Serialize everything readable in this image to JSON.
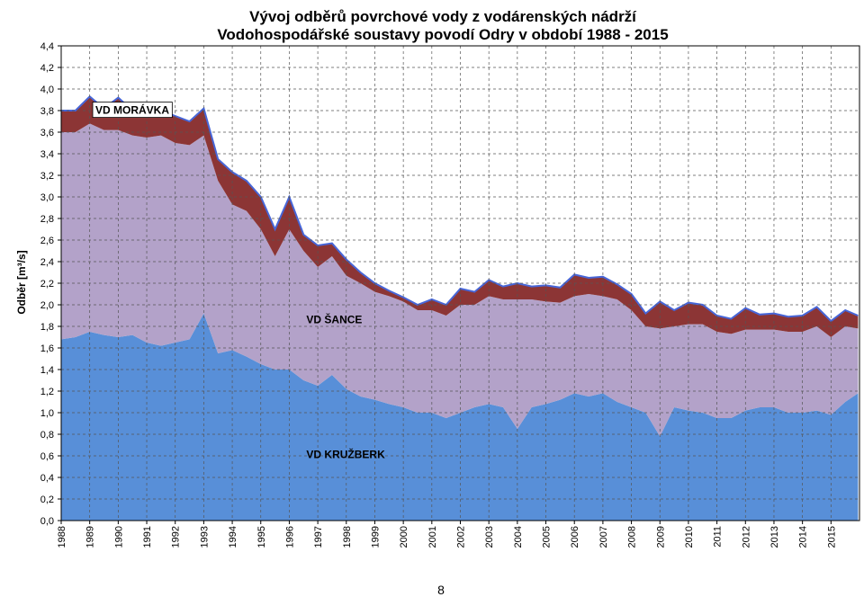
{
  "page_number": "8",
  "chart_data": {
    "type": "area",
    "stacked": true,
    "title": [
      "Vývoj odběrů povrchové vody z vodárenských nádrží",
      "Vodohospodářské soustavy povodí Odry v období  1988 - 2015"
    ],
    "ylabel": "Odběr [m³/s]",
    "xlabel": "",
    "ylim": [
      0,
      4.4
    ],
    "xlim": [
      1988,
      2016
    ],
    "yticks": [
      "0,0",
      "0,2",
      "0,4",
      "0,6",
      "0,8",
      "1,0",
      "1,2",
      "1,4",
      "1,6",
      "1,8",
      "2,0",
      "2,2",
      "2,4",
      "2,6",
      "2,8",
      "3,0",
      "3,2",
      "3,4",
      "3,6",
      "3,8",
      "4,0",
      "4,2",
      "4,4"
    ],
    "xticks": [
      "1988",
      "1989",
      "1990",
      "1991",
      "1992",
      "1993",
      "1994",
      "1995",
      "1996",
      "1997",
      "1998",
      "1999",
      "2000",
      "2001",
      "2002",
      "2003",
      "2004",
      "2005",
      "2006",
      "2007",
      "2008",
      "2009",
      "2010",
      "2011",
      "2012",
      "2013",
      "2014",
      "2015"
    ],
    "grid": true,
    "colors": {
      "kruzberk": "#588fd8",
      "sance": "#b3a2c9",
      "moravka": "#8c3535",
      "edge": "#4766d8"
    },
    "x": [
      1988,
      1988.5,
      1989,
      1989.5,
      1990,
      1990.5,
      1991,
      1991.5,
      1992,
      1992.5,
      1993,
      1993.5,
      1994,
      1994.5,
      1995,
      1995.5,
      1996,
      1996.5,
      1997,
      1997.5,
      1998,
      1998.5,
      1999,
      1999.5,
      2000,
      2000.5,
      2001,
      2001.5,
      2002,
      2002.5,
      2003,
      2003.5,
      2004,
      2004.5,
      2005,
      2005.5,
      2006,
      2006.5,
      2007,
      2007.5,
      2008,
      2008.5,
      2009,
      2009.5,
      2010,
      2010.5,
      2011,
      2011.5,
      2012,
      2012.5,
      2013,
      2013.5,
      2014,
      2014.5,
      2015,
      2015.5,
      2015.95
    ],
    "series": [
      {
        "name": "VD KRUŽBERK",
        "label_x": 1996.6,
        "label_y": 0.58,
        "values": [
          1.68,
          1.7,
          1.75,
          1.72,
          1.7,
          1.72,
          1.65,
          1.62,
          1.65,
          1.68,
          1.92,
          1.55,
          1.58,
          1.52,
          1.45,
          1.4,
          1.4,
          1.3,
          1.25,
          1.35,
          1.22,
          1.15,
          1.12,
          1.08,
          1.05,
          1.0,
          1.0,
          0.95,
          1.0,
          1.05,
          1.08,
          1.05,
          0.85,
          1.05,
          1.08,
          1.12,
          1.18,
          1.15,
          1.18,
          1.1,
          1.05,
          1.0,
          0.78,
          1.05,
          1.02,
          1.0,
          0.95,
          0.95,
          1.02,
          1.05,
          1.05,
          1.0,
          1.0,
          1.02,
          0.98,
          1.1,
          1.18
        ]
      },
      {
        "name": "VD ŠANCE",
        "label_x": 1996.6,
        "label_y": 1.83,
        "values": [
          1.92,
          1.9,
          1.93,
          1.9,
          1.92,
          1.85,
          1.9,
          1.95,
          1.85,
          1.8,
          1.65,
          1.6,
          1.35,
          1.35,
          1.25,
          1.05,
          1.3,
          1.2,
          1.1,
          1.1,
          1.05,
          1.05,
          1.0,
          1.0,
          0.98,
          0.95,
          0.95,
          0.95,
          1.0,
          0.95,
          1.0,
          1.0,
          1.2,
          1.0,
          0.95,
          0.9,
          0.9,
          0.95,
          0.9,
          0.95,
          0.9,
          0.8,
          1.0,
          0.75,
          0.8,
          0.82,
          0.8,
          0.78,
          0.75,
          0.72,
          0.72,
          0.75,
          0.75,
          0.78,
          0.72,
          0.7,
          0.6
        ]
      },
      {
        "name": "VD MORÁVKA",
        "label_x": 1989.2,
        "label_y": 3.77,
        "values": [
          0.2,
          0.2,
          0.25,
          0.2,
          0.3,
          0.23,
          0.3,
          0.23,
          0.25,
          0.22,
          0.25,
          0.2,
          0.3,
          0.28,
          0.3,
          0.25,
          0.3,
          0.15,
          0.2,
          0.12,
          0.15,
          0.1,
          0.08,
          0.05,
          0.04,
          0.05,
          0.1,
          0.1,
          0.15,
          0.12,
          0.15,
          0.12,
          0.15,
          0.12,
          0.15,
          0.14,
          0.2,
          0.15,
          0.18,
          0.14,
          0.15,
          0.12,
          0.25,
          0.15,
          0.2,
          0.18,
          0.15,
          0.14,
          0.2,
          0.14,
          0.15,
          0.14,
          0.15,
          0.18,
          0.15,
          0.15,
          0.12
        ]
      }
    ]
  }
}
